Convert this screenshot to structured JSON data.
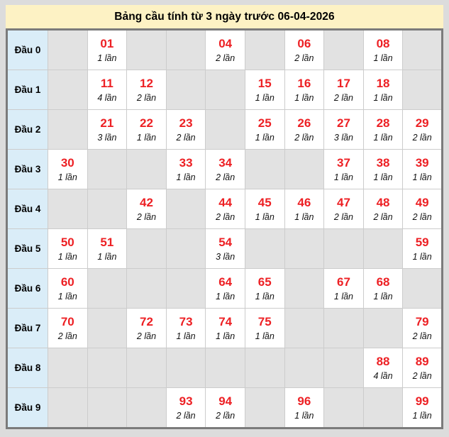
{
  "title": "Bảng cầu tính từ 3 ngày trước 06-04-2026",
  "colors": {
    "page_bg": "#dcdcdc",
    "title_bg": "#fdf2c4",
    "label_bg": "#daedf8",
    "empty_bg": "#e2e2e2",
    "filled_bg": "#ffffff",
    "number_red": "#ed2024",
    "table_border": "#7b7b7b",
    "grid_line": "#cccccc"
  },
  "table": {
    "rows": [
      {
        "label": "Đầu 0",
        "cells": [
          null,
          {
            "num": "01",
            "count": "1 lần"
          },
          null,
          null,
          {
            "num": "04",
            "count": "2 lần"
          },
          null,
          {
            "num": "06",
            "count": "2 lần"
          },
          null,
          {
            "num": "08",
            "count": "1 lần"
          },
          null
        ]
      },
      {
        "label": "Đầu 1",
        "cells": [
          null,
          {
            "num": "11",
            "count": "4 lần"
          },
          {
            "num": "12",
            "count": "2 lần"
          },
          null,
          null,
          {
            "num": "15",
            "count": "1 lần"
          },
          {
            "num": "16",
            "count": "1 lần"
          },
          {
            "num": "17",
            "count": "2 lần"
          },
          {
            "num": "18",
            "count": "1 lần"
          },
          null
        ]
      },
      {
        "label": "Đầu 2",
        "cells": [
          null,
          {
            "num": "21",
            "count": "3 lần"
          },
          {
            "num": "22",
            "count": "1 lần"
          },
          {
            "num": "23",
            "count": "2 lần"
          },
          null,
          {
            "num": "25",
            "count": "1 lần"
          },
          {
            "num": "26",
            "count": "2 lần"
          },
          {
            "num": "27",
            "count": "3 lần"
          },
          {
            "num": "28",
            "count": "1 lần"
          },
          {
            "num": "29",
            "count": "2 lần"
          }
        ]
      },
      {
        "label": "Đầu 3",
        "cells": [
          {
            "num": "30",
            "count": "1 lần"
          },
          null,
          null,
          {
            "num": "33",
            "count": "1 lần"
          },
          {
            "num": "34",
            "count": "2 lần"
          },
          null,
          null,
          {
            "num": "37",
            "count": "1 lần"
          },
          {
            "num": "38",
            "count": "1 lần"
          },
          {
            "num": "39",
            "count": "1 lần"
          }
        ]
      },
      {
        "label": "Đầu 4",
        "cells": [
          null,
          null,
          {
            "num": "42",
            "count": "2 lần"
          },
          null,
          {
            "num": "44",
            "count": "2 lần"
          },
          {
            "num": "45",
            "count": "1 lần"
          },
          {
            "num": "46",
            "count": "1 lần"
          },
          {
            "num": "47",
            "count": "2 lần"
          },
          {
            "num": "48",
            "count": "2 lần"
          },
          {
            "num": "49",
            "count": "2 lần"
          }
        ]
      },
      {
        "label": "Đầu 5",
        "cells": [
          {
            "num": "50",
            "count": "1 lần"
          },
          {
            "num": "51",
            "count": "1 lần"
          },
          null,
          null,
          {
            "num": "54",
            "count": "3 lần"
          },
          null,
          null,
          null,
          null,
          {
            "num": "59",
            "count": "1 lần"
          }
        ]
      },
      {
        "label": "Đầu 6",
        "cells": [
          {
            "num": "60",
            "count": "1 lần"
          },
          null,
          null,
          null,
          {
            "num": "64",
            "count": "1 lần"
          },
          {
            "num": "65",
            "count": "1 lần"
          },
          null,
          {
            "num": "67",
            "count": "1 lần"
          },
          {
            "num": "68",
            "count": "1 lần"
          },
          null
        ]
      },
      {
        "label": "Đầu 7",
        "cells": [
          {
            "num": "70",
            "count": "2 lần"
          },
          null,
          {
            "num": "72",
            "count": "2 lần"
          },
          {
            "num": "73",
            "count": "1 lần"
          },
          {
            "num": "74",
            "count": "1 lần"
          },
          {
            "num": "75",
            "count": "1 lần"
          },
          null,
          null,
          null,
          {
            "num": "79",
            "count": "2 lần"
          }
        ]
      },
      {
        "label": "Đầu 8",
        "cells": [
          null,
          null,
          null,
          null,
          null,
          null,
          null,
          null,
          {
            "num": "88",
            "count": "4 lần"
          },
          {
            "num": "89",
            "count": "2 lần"
          }
        ]
      },
      {
        "label": "Đầu 9",
        "cells": [
          null,
          null,
          null,
          {
            "num": "93",
            "count": "2 lần"
          },
          {
            "num": "94",
            "count": "2 lần"
          },
          null,
          {
            "num": "96",
            "count": "1 lần"
          },
          null,
          null,
          {
            "num": "99",
            "count": "1 lần"
          }
        ]
      }
    ]
  }
}
